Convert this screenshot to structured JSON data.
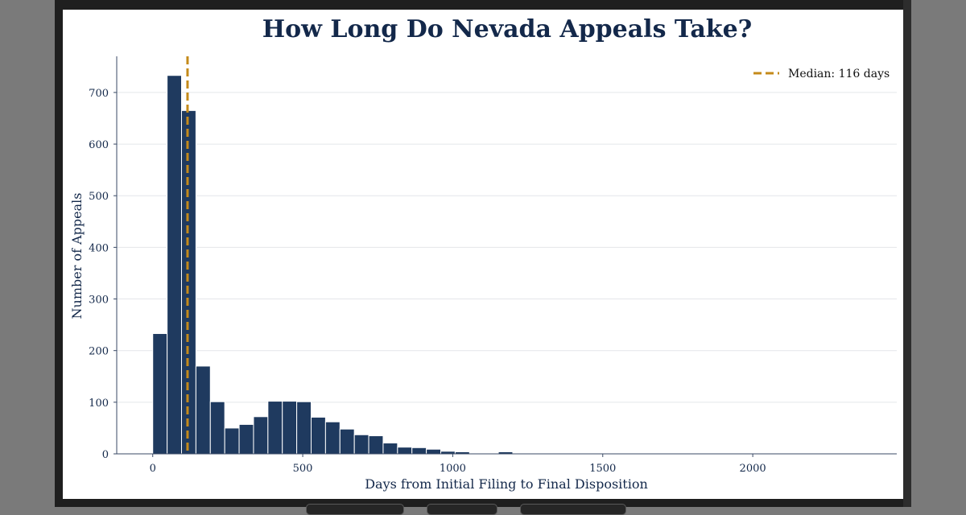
{
  "chart_data": {
    "type": "bar",
    "title": "How Long Do Nevada Appeals Take?",
    "xlabel": "Days from Initial Filing to Final Disposition",
    "ylabel": "Number of Appeals",
    "xlim": [
      -120,
      2480
    ],
    "ylim": [
      0,
      770
    ],
    "x_ticks": [
      0,
      500,
      1000,
      1500,
      2000
    ],
    "y_ticks": [
      0,
      100,
      200,
      300,
      400,
      500,
      600,
      700
    ],
    "bin_width": 48,
    "bins_start": [
      0,
      48,
      96,
      144,
      192,
      240,
      288,
      336,
      384,
      432,
      480,
      528,
      576,
      624,
      672,
      720,
      768,
      816,
      864,
      912,
      960,
      1008,
      1152,
      1296,
      1632
    ],
    "values": [
      233,
      733,
      665,
      170,
      101,
      50,
      57,
      72,
      102,
      102,
      101,
      71,
      62,
      48,
      37,
      35,
      21,
      13,
      12,
      9,
      5,
      4,
      4,
      1,
      1
    ],
    "grid": true,
    "bar_color": "#1f3a5f",
    "median": {
      "value": 116,
      "label": "Median: 116 days",
      "color": "#c48a1a"
    },
    "legend_position": "top-right"
  }
}
